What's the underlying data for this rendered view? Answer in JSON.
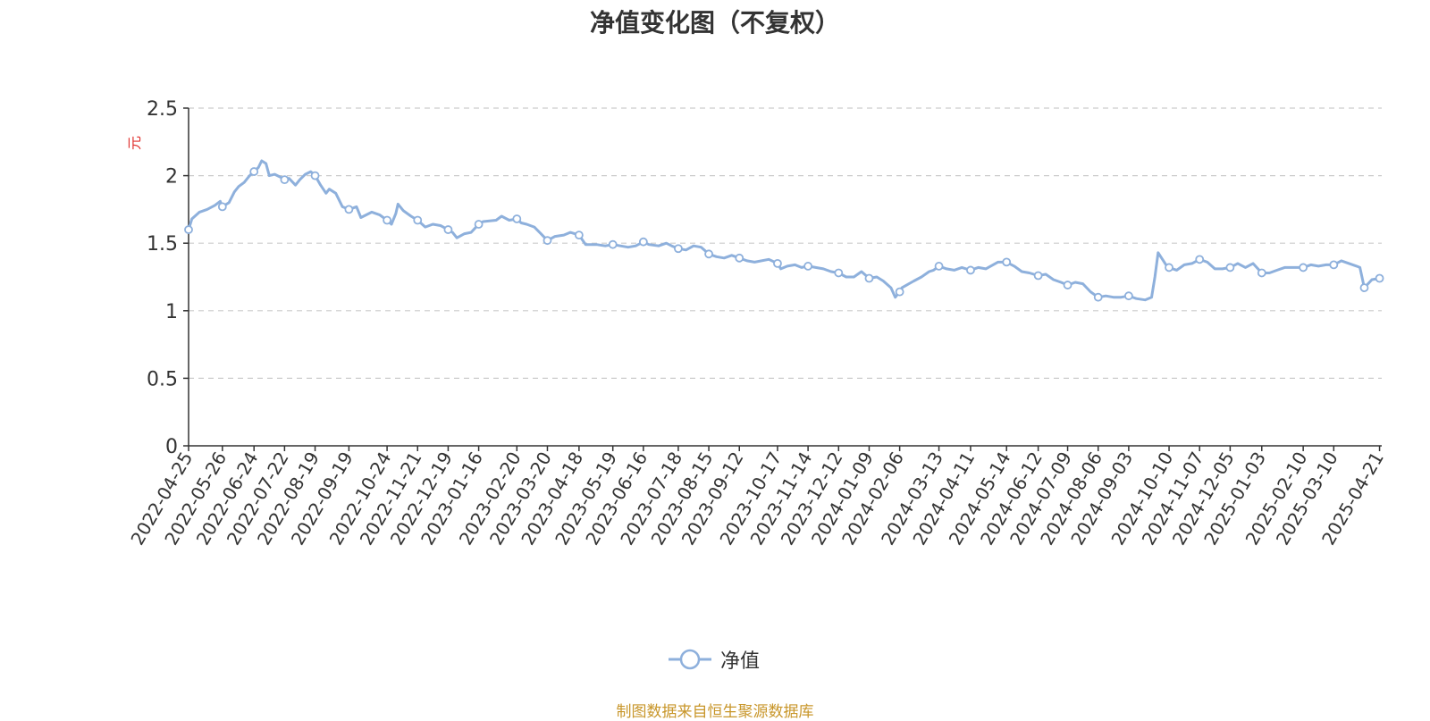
{
  "colors": {
    "line": "#8eb0dc",
    "axis": "#333333",
    "grid": "#cccccc",
    "ylabel": "#e0312e",
    "source": "#c8962a"
  },
  "legend": {
    "label": "净值",
    "icon": "line-circle-icon"
  },
  "source_text": "制图数据来自恒生聚源数据库",
  "chart_data": {
    "type": "line",
    "title": "净值变化图（不复权）",
    "xlabel": "",
    "ylabel": "元",
    "ylim": [
      0,
      2.5
    ],
    "yticks": [
      0,
      0.5,
      1,
      1.5,
      2,
      2.5
    ],
    "ytick_labels": [
      "0",
      "0.5",
      "1",
      "1.5",
      "2",
      "2.5"
    ],
    "xlim": [
      "2022-04-25",
      "2025-04-23"
    ],
    "grid": "horizontal dashed",
    "legend_position": "bottom-center",
    "x_tick_labels": [
      "2022-04-25",
      "2022-05-26",
      "2022-06-24",
      "2022-07-22",
      "2022-08-19",
      "2022-09-19",
      "2022-10-24",
      "2022-11-21",
      "2022-12-19",
      "2023-01-16",
      "2023-02-20",
      "2023-03-20",
      "2023-04-18",
      "2023-05-19",
      "2023-06-16",
      "2023-07-18",
      "2023-08-15",
      "2023-09-12",
      "2023-10-17",
      "2023-11-14",
      "2023-12-12",
      "2024-01-09",
      "2024-02-06",
      "2024-03-13",
      "2024-04-11",
      "2024-05-14",
      "2024-06-12",
      "2024-07-09",
      "2024-08-06",
      "2024-09-03",
      "2024-10-10",
      "2024-11-07",
      "2024-12-05",
      "2025-01-03",
      "2025-02-10",
      "2025-03-10",
      "2025-04-21"
    ],
    "series": [
      {
        "name": "净值",
        "points": [
          [
            "2022-04-25",
            1.6
          ],
          [
            "2022-04-28",
            1.68
          ],
          [
            "2022-05-05",
            1.73
          ],
          [
            "2022-05-12",
            1.75
          ],
          [
            "2022-05-19",
            1.78
          ],
          [
            "2022-05-24",
            1.81
          ],
          [
            "2022-05-26",
            1.77
          ],
          [
            "2022-06-01",
            1.8
          ],
          [
            "2022-06-06",
            1.88
          ],
          [
            "2022-06-10",
            1.92
          ],
          [
            "2022-06-15",
            1.95
          ],
          [
            "2022-06-20",
            2.0
          ],
          [
            "2022-06-24",
            2.03
          ],
          [
            "2022-06-28",
            2.06
          ],
          [
            "2022-07-01",
            2.11
          ],
          [
            "2022-07-05",
            2.09
          ],
          [
            "2022-07-08",
            2.0
          ],
          [
            "2022-07-13",
            2.01
          ],
          [
            "2022-07-18",
            1.99
          ],
          [
            "2022-07-22",
            1.97
          ],
          [
            "2022-07-26",
            1.98
          ],
          [
            "2022-08-01",
            1.93
          ],
          [
            "2022-08-05",
            1.97
          ],
          [
            "2022-08-10",
            2.01
          ],
          [
            "2022-08-15",
            2.03
          ],
          [
            "2022-08-19",
            2.0
          ],
          [
            "2022-08-24",
            1.93
          ],
          [
            "2022-08-29",
            1.87
          ],
          [
            "2022-09-01",
            1.9
          ],
          [
            "2022-09-07",
            1.87
          ],
          [
            "2022-09-13",
            1.77
          ],
          [
            "2022-09-19",
            1.75
          ],
          [
            "2022-09-26",
            1.77
          ],
          [
            "2022-09-30",
            1.69
          ],
          [
            "2022-10-10",
            1.73
          ],
          [
            "2022-10-17",
            1.71
          ],
          [
            "2022-10-24",
            1.67
          ],
          [
            "2022-10-28",
            1.64
          ],
          [
            "2022-11-01",
            1.72
          ],
          [
            "2022-11-03",
            1.79
          ],
          [
            "2022-11-08",
            1.74
          ],
          [
            "2022-11-15",
            1.7
          ],
          [
            "2022-11-21",
            1.67
          ],
          [
            "2022-11-28",
            1.62
          ],
          [
            "2022-12-05",
            1.64
          ],
          [
            "2022-12-12",
            1.63
          ],
          [
            "2022-12-19",
            1.6
          ],
          [
            "2022-12-23",
            1.58
          ],
          [
            "2022-12-27",
            1.54
          ],
          [
            "2023-01-03",
            1.57
          ],
          [
            "2023-01-09",
            1.58
          ],
          [
            "2023-01-16",
            1.64
          ],
          [
            "2023-01-20",
            1.66
          ],
          [
            "2023-02-01",
            1.67
          ],
          [
            "2023-02-06",
            1.7
          ],
          [
            "2023-02-13",
            1.67
          ],
          [
            "2023-02-20",
            1.68
          ],
          [
            "2023-02-24",
            1.65
          ],
          [
            "2023-03-01",
            1.64
          ],
          [
            "2023-03-08",
            1.62
          ],
          [
            "2023-03-14",
            1.57
          ],
          [
            "2023-03-20",
            1.52
          ],
          [
            "2023-03-27",
            1.55
          ],
          [
            "2023-04-04",
            1.56
          ],
          [
            "2023-04-10",
            1.58
          ],
          [
            "2023-04-18",
            1.56
          ],
          [
            "2023-04-24",
            1.49
          ],
          [
            "2023-05-04",
            1.49
          ],
          [
            "2023-05-12",
            1.48
          ],
          [
            "2023-05-19",
            1.49
          ],
          [
            "2023-05-26",
            1.48
          ],
          [
            "2023-06-02",
            1.47
          ],
          [
            "2023-06-09",
            1.48
          ],
          [
            "2023-06-16",
            1.51
          ],
          [
            "2023-06-21",
            1.49
          ],
          [
            "2023-06-30",
            1.48
          ],
          [
            "2023-07-07",
            1.5
          ],
          [
            "2023-07-12",
            1.48
          ],
          [
            "2023-07-18",
            1.46
          ],
          [
            "2023-07-25",
            1.45
          ],
          [
            "2023-08-01",
            1.48
          ],
          [
            "2023-08-08",
            1.47
          ],
          [
            "2023-08-15",
            1.42
          ],
          [
            "2023-08-22",
            1.4
          ],
          [
            "2023-08-29",
            1.39
          ],
          [
            "2023-09-05",
            1.41
          ],
          [
            "2023-09-12",
            1.39
          ],
          [
            "2023-09-19",
            1.37
          ],
          [
            "2023-09-26",
            1.36
          ],
          [
            "2023-10-09",
            1.38
          ],
          [
            "2023-10-17",
            1.35
          ],
          [
            "2023-10-20",
            1.31
          ],
          [
            "2023-10-26",
            1.33
          ],
          [
            "2023-11-02",
            1.34
          ],
          [
            "2023-11-08",
            1.32
          ],
          [
            "2023-11-14",
            1.33
          ],
          [
            "2023-11-21",
            1.32
          ],
          [
            "2023-11-28",
            1.31
          ],
          [
            "2023-12-05",
            1.29
          ],
          [
            "2023-12-12",
            1.28
          ],
          [
            "2023-12-19",
            1.25
          ],
          [
            "2023-12-26",
            1.25
          ],
          [
            "2024-01-02",
            1.29
          ],
          [
            "2024-01-09",
            1.24
          ],
          [
            "2024-01-16",
            1.25
          ],
          [
            "2024-01-22",
            1.22
          ],
          [
            "2024-01-29",
            1.17
          ],
          [
            "2024-02-02",
            1.1
          ],
          [
            "2024-02-06",
            1.14
          ],
          [
            "2024-02-08",
            1.17
          ],
          [
            "2024-02-19",
            1.22
          ],
          [
            "2024-02-26",
            1.25
          ],
          [
            "2024-03-04",
            1.29
          ],
          [
            "2024-03-08",
            1.3
          ],
          [
            "2024-03-13",
            1.33
          ],
          [
            "2024-03-20",
            1.31
          ],
          [
            "2024-03-27",
            1.3
          ],
          [
            "2024-04-03",
            1.32
          ],
          [
            "2024-04-11",
            1.3
          ],
          [
            "2024-04-18",
            1.32
          ],
          [
            "2024-04-25",
            1.31
          ],
          [
            "2024-05-06",
            1.36
          ],
          [
            "2024-05-14",
            1.36
          ],
          [
            "2024-05-21",
            1.33
          ],
          [
            "2024-05-28",
            1.29
          ],
          [
            "2024-06-04",
            1.28
          ],
          [
            "2024-06-12",
            1.26
          ],
          [
            "2024-06-19",
            1.27
          ],
          [
            "2024-06-26",
            1.23
          ],
          [
            "2024-07-03",
            1.21
          ],
          [
            "2024-07-09",
            1.19
          ],
          [
            "2024-07-16",
            1.21
          ],
          [
            "2024-07-23",
            1.2
          ],
          [
            "2024-07-30",
            1.14
          ],
          [
            "2024-08-06",
            1.1
          ],
          [
            "2024-08-13",
            1.11
          ],
          [
            "2024-08-20",
            1.1
          ],
          [
            "2024-08-27",
            1.1
          ],
          [
            "2024-09-03",
            1.11
          ],
          [
            "2024-09-10",
            1.09
          ],
          [
            "2024-09-18",
            1.08
          ],
          [
            "2024-09-24",
            1.1
          ],
          [
            "2024-09-27",
            1.25
          ],
          [
            "2024-09-30",
            1.43
          ],
          [
            "2024-10-08",
            1.33
          ],
          [
            "2024-10-10",
            1.32
          ],
          [
            "2024-10-17",
            1.3
          ],
          [
            "2024-10-24",
            1.34
          ],
          [
            "2024-10-31",
            1.35
          ],
          [
            "2024-11-07",
            1.38
          ],
          [
            "2024-11-14",
            1.36
          ],
          [
            "2024-11-21",
            1.31
          ],
          [
            "2024-11-28",
            1.31
          ],
          [
            "2024-12-05",
            1.32
          ],
          [
            "2024-12-12",
            1.35
          ],
          [
            "2024-12-19",
            1.32
          ],
          [
            "2024-12-26",
            1.35
          ],
          [
            "2025-01-03",
            1.28
          ],
          [
            "2025-01-10",
            1.28
          ],
          [
            "2025-01-17",
            1.3
          ],
          [
            "2025-01-24",
            1.32
          ],
          [
            "2025-02-10",
            1.32
          ],
          [
            "2025-02-17",
            1.34
          ],
          [
            "2025-02-24",
            1.33
          ],
          [
            "2025-03-03",
            1.34
          ],
          [
            "2025-03-10",
            1.34
          ],
          [
            "2025-03-17",
            1.37
          ],
          [
            "2025-03-24",
            1.35
          ],
          [
            "2025-03-31",
            1.33
          ],
          [
            "2025-04-03",
            1.32
          ],
          [
            "2025-04-07",
            1.17
          ],
          [
            "2025-04-14",
            1.23
          ],
          [
            "2025-04-21",
            1.24
          ]
        ],
        "markers": [
          [
            "2022-04-25",
            1.6
          ],
          [
            "2022-05-26",
            1.77
          ],
          [
            "2022-06-24",
            2.03
          ],
          [
            "2022-07-22",
            1.97
          ],
          [
            "2022-08-19",
            2.0
          ],
          [
            "2022-09-19",
            1.75
          ],
          [
            "2022-10-24",
            1.67
          ],
          [
            "2022-11-21",
            1.67
          ],
          [
            "2022-12-19",
            1.6
          ],
          [
            "2023-01-16",
            1.64
          ],
          [
            "2023-02-20",
            1.68
          ],
          [
            "2023-03-20",
            1.52
          ],
          [
            "2023-04-18",
            1.56
          ],
          [
            "2023-05-19",
            1.49
          ],
          [
            "2023-06-16",
            1.51
          ],
          [
            "2023-07-18",
            1.46
          ],
          [
            "2023-08-15",
            1.42
          ],
          [
            "2023-09-12",
            1.39
          ],
          [
            "2023-10-17",
            1.35
          ],
          [
            "2023-11-14",
            1.33
          ],
          [
            "2023-12-12",
            1.28
          ],
          [
            "2024-01-09",
            1.24
          ],
          [
            "2024-02-06",
            1.14
          ],
          [
            "2024-03-13",
            1.33
          ],
          [
            "2024-04-11",
            1.3
          ],
          [
            "2024-05-14",
            1.36
          ],
          [
            "2024-06-12",
            1.26
          ],
          [
            "2024-07-09",
            1.19
          ],
          [
            "2024-08-06",
            1.1
          ],
          [
            "2024-09-03",
            1.11
          ],
          [
            "2024-10-10",
            1.32
          ],
          [
            "2024-11-07",
            1.38
          ],
          [
            "2024-12-05",
            1.32
          ],
          [
            "2025-01-03",
            1.28
          ],
          [
            "2025-02-10",
            1.32
          ],
          [
            "2025-03-10",
            1.34
          ],
          [
            "2025-04-07",
            1.17
          ],
          [
            "2025-04-21",
            1.24
          ]
        ]
      }
    ]
  }
}
